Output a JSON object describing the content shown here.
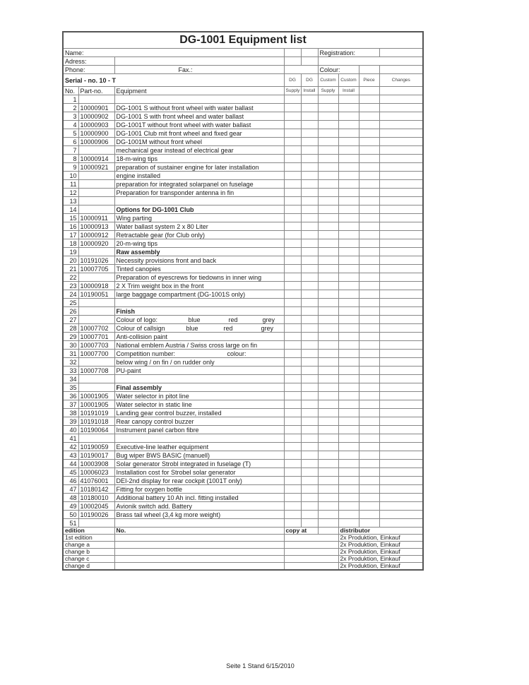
{
  "title": "DG-1001     Equipment list",
  "header": {
    "name_label": "Name:",
    "registration_label": "Registration:",
    "address_label": "Adress:",
    "phone_label": "Phone:",
    "fax_label": "Fax.:",
    "colour_label": "Colour:",
    "serial": "Serial - no.   10 - T",
    "col_dg1": "DG",
    "col_dg2": "DG",
    "col_custom1": "Custom",
    "col_custom2": "Custom",
    "col_piece": "Piece",
    "col_changes": "Changes",
    "col_no": "No.",
    "col_part": "Part-no.",
    "col_equipment": "Equipment",
    "col_supply1": "Supply",
    "col_install1": "Install",
    "col_supply2": "Supply",
    "col_install2": "Install"
  },
  "rows": [
    {
      "no": "1",
      "part": "",
      "text": [
        ""
      ]
    },
    {
      "no": "2",
      "part": "10000901",
      "text": [
        "DG-1001 S without front wheel with water ballast"
      ]
    },
    {
      "no": "3",
      "part": "10000902",
      "text": [
        "DG-1001 S with front wheel and water ballast"
      ]
    },
    {
      "no": "4",
      "part": "10000903",
      "text": [
        "DG-1001T without front wheel with water ballast"
      ]
    },
    {
      "no": "5",
      "part": "10000900",
      "text": [
        "DG-1001 Club mit front wheel and fixed gear"
      ]
    },
    {
      "no": "6",
      "part": "10000906",
      "text": [
        "DG-1001M without front wheel"
      ]
    },
    {
      "no": "7",
      "part": "",
      "text": [
        "mechanical gear instead of electrical gear"
      ]
    },
    {
      "no": "8",
      "part": "10000914",
      "text": [
        "18-m-wing tips"
      ]
    },
    {
      "no": "9",
      "part": "10000921",
      "text": [
        "preparation of sustainer engine for later installation"
      ]
    },
    {
      "no": "10",
      "part": "",
      "text": [
        "engine installed"
      ]
    },
    {
      "no": "11",
      "part": "",
      "text": [
        "preparation for integrated solarpanel on fuselage"
      ]
    },
    {
      "no": "12",
      "part": "",
      "text": [
        "Preparation for transponder antenna in fin"
      ]
    },
    {
      "no": "13",
      "part": "",
      "text": [
        ""
      ]
    },
    {
      "no": "14",
      "part": "",
      "text": [
        "Options for DG-1001 Club"
      ],
      "bold": true
    },
    {
      "no": "15",
      "part": "10000911",
      "text": [
        "Wing parting"
      ]
    },
    {
      "no": "16",
      "part": "10000913",
      "text": [
        "Water ballast system 2 x 80 Liter"
      ]
    },
    {
      "no": "17",
      "part": "10000912",
      "text": [
        "Retractable gear (for Club only)"
      ]
    },
    {
      "no": "18",
      "part": "10000920",
      "text": [
        "20-m-wing tips"
      ]
    },
    {
      "no": "19",
      "part": "",
      "text": [
        "Raw assembly"
      ],
      "bold": true
    },
    {
      "no": "20",
      "part": "10191026",
      "text": [
        "Necessity provisions front and back"
      ]
    },
    {
      "no": "21",
      "part": "10007705",
      "text": [
        "Tinted canopies"
      ]
    },
    {
      "no": "22",
      "part": "",
      "text": [
        "Preparation of eyescrews for tiedowns in inner wing"
      ]
    },
    {
      "no": "23",
      "part": "10000918",
      "text": [
        "2 X Trim weight box in the front"
      ]
    },
    {
      "no": "24",
      "part": "10190051",
      "text": [
        "large baggage compartment  (DG-1001S only)"
      ]
    },
    {
      "no": "25",
      "part": "",
      "text": [
        ""
      ]
    },
    {
      "no": "26",
      "part": "",
      "text": [
        "Finish"
      ],
      "bold": true
    },
    {
      "no": "27",
      "part": "",
      "text": [
        "Colour of logo:",
        "blue",
        "red",
        "grey"
      ]
    },
    {
      "no": "28",
      "part": "10007702",
      "text": [
        "Colour of callsign",
        "blue",
        "red",
        "grey"
      ]
    },
    {
      "no": "29",
      "part": "10007701",
      "text": [
        "Anti-collision paint"
      ]
    },
    {
      "no": "30",
      "part": "10007703",
      "text": [
        "National emblem Austria / Swiss cross large on fin"
      ]
    },
    {
      "no": "31",
      "part": "10007700",
      "text": [
        "Competition number:",
        "colour:"
      ]
    },
    {
      "no": "32",
      "part": "",
      "text": [
        "below wing / on fin / on rudder only"
      ]
    },
    {
      "no": "33",
      "part": "10007708",
      "text": [
        "PU-paint"
      ]
    },
    {
      "no": "34",
      "part": "",
      "text": [
        ""
      ]
    },
    {
      "no": "35",
      "part": "",
      "text": [
        "Final assembly"
      ],
      "bold": true
    },
    {
      "no": "36",
      "part": "10001905",
      "text": [
        "Water selector in pitot line"
      ]
    },
    {
      "no": "37",
      "part": "10001905",
      "text": [
        "Water selector in static line"
      ]
    },
    {
      "no": "38",
      "part": "10191019",
      "text": [
        "Landing gear control buzzer, installed"
      ]
    },
    {
      "no": "39",
      "part": "10191018",
      "text": [
        "Rear canopy control buzzer"
      ]
    },
    {
      "no": "40",
      "part": "10190064",
      "text": [
        "Instrument panel carbon fibre"
      ]
    },
    {
      "no": "41",
      "part": "",
      "text": [
        ""
      ]
    },
    {
      "no": "42",
      "part": "10190059",
      "text": [
        "Executive-line leather equipment"
      ]
    },
    {
      "no": "43",
      "part": "10190017",
      "text": [
        "Bug wiper BWS BASIC (manuell)"
      ]
    },
    {
      "no": "44",
      "part": "10003908",
      "text": [
        "Solar generator Strobl integrated in fuselage (T)"
      ]
    },
    {
      "no": "45",
      "part": "10006023",
      "text": [
        "Installation cost for Strobel solar generator"
      ]
    },
    {
      "no": "46",
      "part": "41076001",
      "text": [
        "DEI-2nd display for rear cockpit (1001T only)"
      ]
    },
    {
      "no": "47",
      "part": "10180142",
      "text": [
        "Fitting for oxygen bottle"
      ]
    },
    {
      "no": "48",
      "part": "10180010",
      "text": [
        "Additional battery 10 Ah incl. fitting installed"
      ]
    },
    {
      "no": "49",
      "part": "10002045",
      "text": [
        "Avionik switch  add. Battery"
      ]
    },
    {
      "no": "50",
      "part": "10190026",
      "text": [
        "Brass tail wheel (3,4 kg more weight)"
      ]
    },
    {
      "no": "51",
      "part": "",
      "text": [
        ""
      ]
    }
  ],
  "footer_table": {
    "headers": {
      "edition": "edition",
      "no": "No.",
      "copy_at": "copy at",
      "distributor": "distributor"
    },
    "rows": [
      {
        "edition": "1st edition",
        "distributor": "2x Produktion, Einkauf"
      },
      {
        "edition": "change a",
        "distributor": "2x Produktion, Einkauf"
      },
      {
        "edition": "change b",
        "distributor": "2x Produktion, Einkauf"
      },
      {
        "edition": "change c",
        "distributor": "2x Produktion, Einkauf"
      },
      {
        "edition": "change d",
        "distributor": "2x Produktion, Einkauf"
      }
    ]
  },
  "page_footer": "Seite 1 Stand 6/15/2010"
}
